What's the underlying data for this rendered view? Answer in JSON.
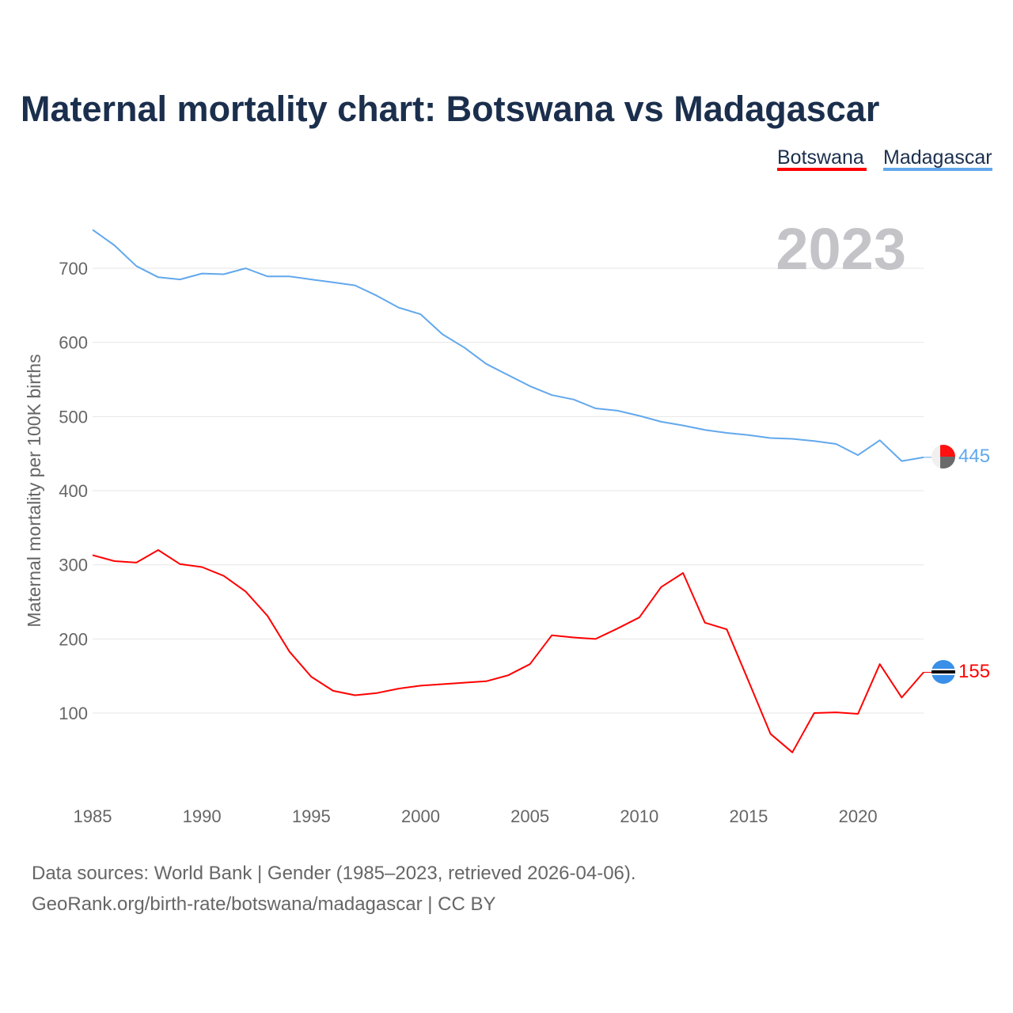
{
  "chart_data": {
    "type": "line",
    "title": "Maternal mortality chart: Botswana vs Madagascar",
    "xlabel": "",
    "ylabel": "Maternal mortality per 100K births",
    "xlim": [
      1985,
      2023
    ],
    "ylim": [
      0,
      760
    ],
    "grid": true,
    "legend_position": "top-right",
    "x_ticks": [
      1985,
      1990,
      1995,
      2000,
      2005,
      2010,
      2015,
      2020
    ],
    "y_ticks": [
      100,
      200,
      300,
      400,
      500,
      600,
      700
    ],
    "year_watermark": "2023",
    "x": [
      1985,
      1986,
      1987,
      1988,
      1989,
      1990,
      1991,
      1992,
      1993,
      1994,
      1995,
      1996,
      1997,
      1998,
      1999,
      2000,
      2001,
      2002,
      2003,
      2004,
      2005,
      2006,
      2007,
      2008,
      2009,
      2010,
      2011,
      2012,
      2013,
      2014,
      2015,
      2016,
      2017,
      2018,
      2019,
      2020,
      2021,
      2022,
      2023
    ],
    "series": [
      {
        "name": "Botswana",
        "color": "#ff0000",
        "end_label": "155",
        "values": [
          313,
          305,
          303,
          320,
          301,
          297,
          285,
          264,
          231,
          183,
          149,
          130,
          124,
          127,
          133,
          137,
          139,
          141,
          143,
          151,
          166,
          205,
          202,
          200,
          214,
          229,
          270,
          289,
          222,
          213,
          143,
          72,
          47,
          100,
          101,
          99,
          166,
          121,
          155
        ]
      },
      {
        "name": "Madagascar",
        "color": "#62a8ec",
        "end_label": "445",
        "values": [
          752,
          731,
          703,
          688,
          685,
          693,
          692,
          700,
          689,
          689,
          685,
          681,
          677,
          663,
          647,
          638,
          611,
          593,
          571,
          556,
          541,
          529,
          523,
          511,
          508,
          501,
          493,
          488,
          482,
          478,
          475,
          471,
          470,
          467,
          463,
          448,
          468,
          440,
          445
        ]
      }
    ],
    "footer": [
      "Data sources: World Bank | Gender (1985–2023, retrieved 2026-04-06).",
      "GeoRank.org/birth-rate/botswana/madagascar | CC BY"
    ]
  }
}
